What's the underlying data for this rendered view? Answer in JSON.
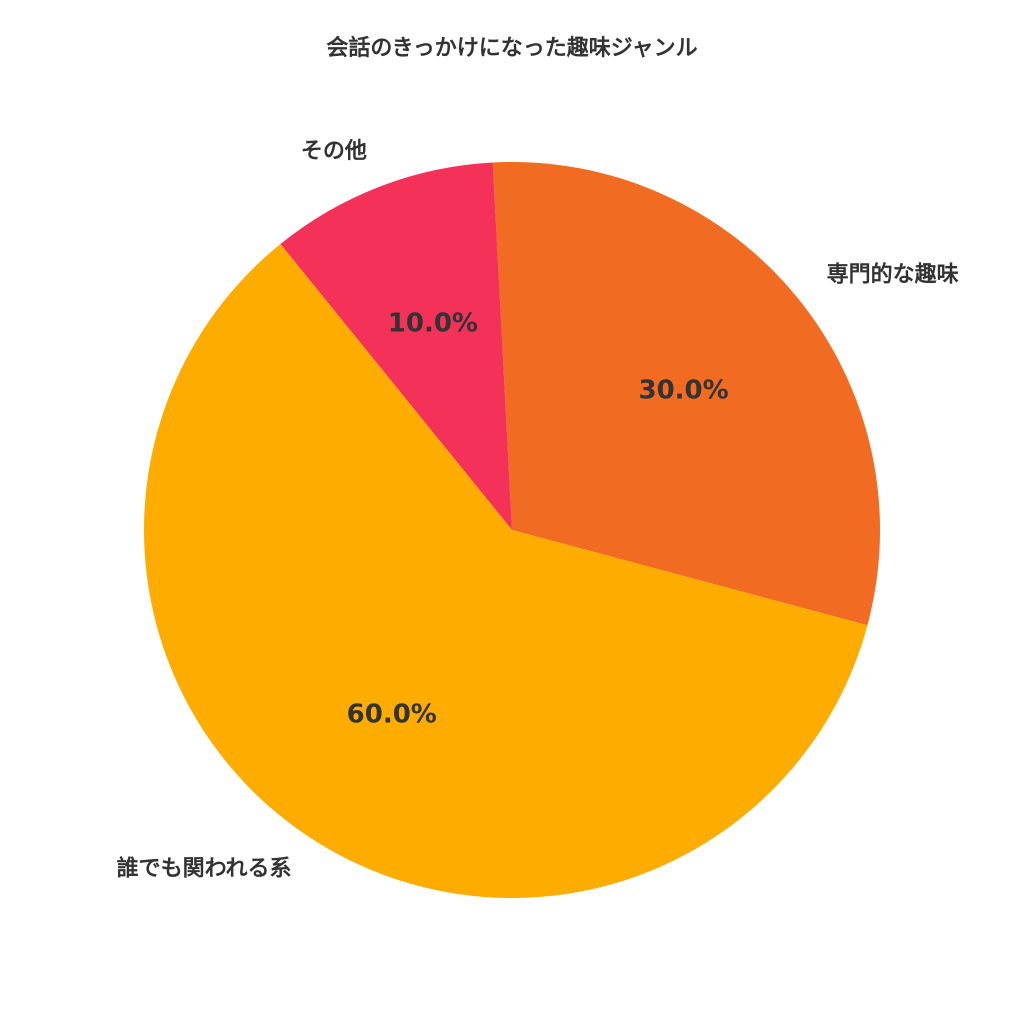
{
  "chart_data": {
    "type": "pie",
    "title": "会話のきっかけになった趣味ジャンル",
    "start_angle_deg": -15,
    "direction": "counterclockwise",
    "slices": [
      {
        "label": "専門的な趣味",
        "value": 30.0,
        "percent_label": "30.0%",
        "color": "#F26B23"
      },
      {
        "label": "その他",
        "value": 10.0,
        "percent_label": "10.0%",
        "color": "#F43159"
      },
      {
        "label": "誰でも関われる系",
        "value": 60.0,
        "percent_label": "60.0%",
        "color": "#FFAC00"
      }
    ]
  }
}
